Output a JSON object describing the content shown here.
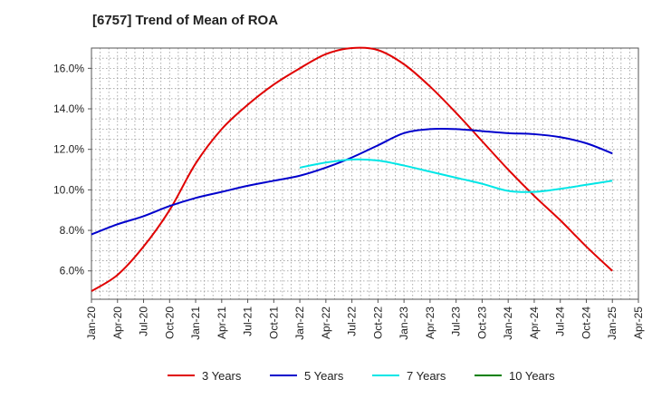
{
  "title": "[6757]  Trend of Mean of ROA",
  "chart_data": {
    "type": "line",
    "title": "[6757]  Trend of Mean of ROA",
    "xlabel": "",
    "ylabel": "",
    "ylim": [
      4.6,
      17.0
    ],
    "yticks": [
      6.0,
      8.0,
      10.0,
      12.0,
      14.0,
      16.0
    ],
    "ytick_labels": [
      "6.0%",
      "8.0%",
      "10.0%",
      "12.0%",
      "14.0%",
      "16.0%"
    ],
    "categories": [
      "Jan-20",
      "Apr-20",
      "Jul-20",
      "Oct-20",
      "Jan-21",
      "Apr-21",
      "Jul-21",
      "Oct-21",
      "Jan-22",
      "Apr-22",
      "Jul-22",
      "Oct-22",
      "Jan-23",
      "Apr-23",
      "Jul-23",
      "Oct-23",
      "Jan-24",
      "Apr-24",
      "Jul-24",
      "Oct-24",
      "Jan-25",
      "Apr-25"
    ],
    "grid": true,
    "legend_position": "bottom",
    "series": [
      {
        "name": "3 Years",
        "color": "#e00000",
        "values": [
          5.0,
          5.8,
          7.2,
          9.0,
          11.3,
          13.0,
          14.2,
          15.2,
          16.0,
          16.7,
          17.0,
          16.9,
          16.2,
          15.1,
          13.8,
          12.4,
          11.0,
          9.7,
          8.5,
          7.2,
          6.0,
          null
        ]
      },
      {
        "name": "5 Years",
        "color": "#0000cc",
        "values": [
          7.8,
          8.3,
          8.7,
          9.2,
          9.6,
          9.9,
          10.2,
          10.45,
          10.7,
          11.1,
          11.6,
          12.2,
          12.8,
          13.0,
          13.0,
          12.9,
          12.8,
          12.75,
          12.6,
          12.3,
          11.8,
          null
        ]
      },
      {
        "name": "7 Years",
        "color": "#00e6e6",
        "values": [
          null,
          null,
          null,
          null,
          null,
          null,
          null,
          null,
          11.1,
          11.35,
          11.5,
          11.45,
          11.2,
          10.9,
          10.6,
          10.3,
          9.95,
          9.9,
          10.05,
          10.25,
          10.45,
          null
        ]
      },
      {
        "name": "10 Years",
        "color": "#008000",
        "values": [
          null,
          null,
          null,
          null,
          null,
          null,
          null,
          null,
          null,
          null,
          null,
          null,
          null,
          null,
          null,
          null,
          null,
          null,
          null,
          null,
          null,
          null
        ]
      }
    ]
  }
}
